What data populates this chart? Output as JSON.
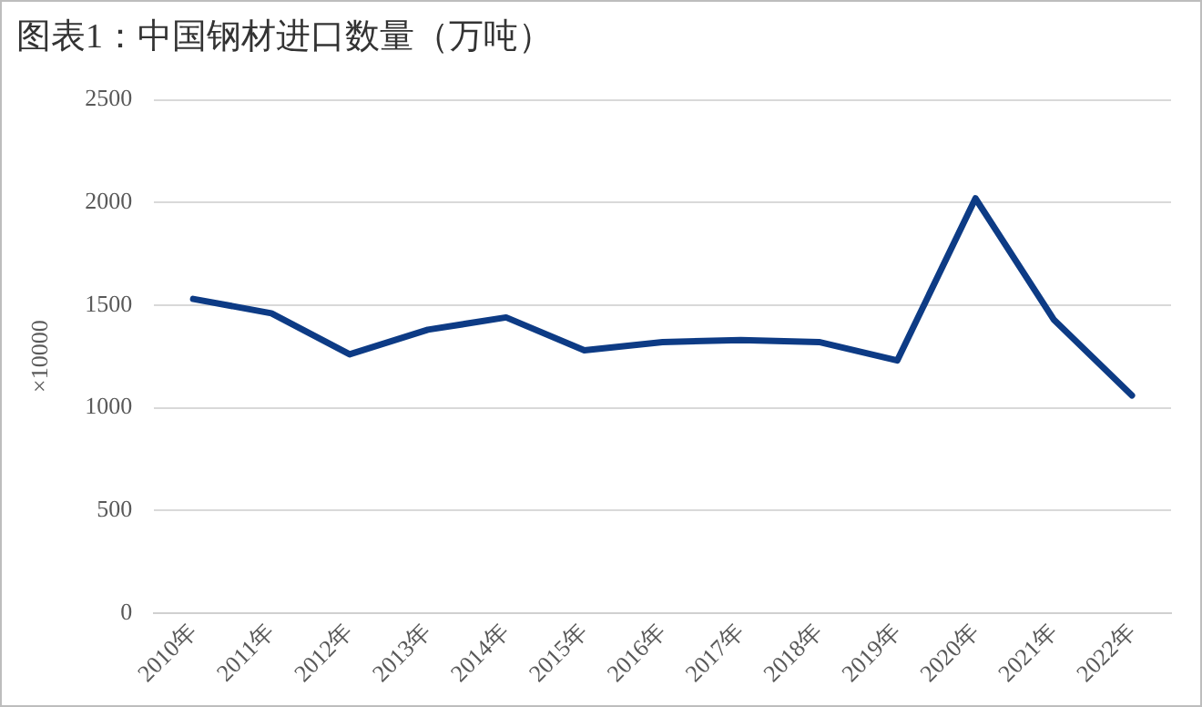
{
  "chart_data": {
    "type": "line",
    "title": "图表1：中国钢材进口数量（万吨）",
    "ylabel": "×10000",
    "categories": [
      "2010年",
      "2011年",
      "2012年",
      "2013年",
      "2014年",
      "2015年",
      "2016年",
      "2017年",
      "2018年",
      "2019年",
      "2020年",
      "2021年",
      "2022年"
    ],
    "series": [
      {
        "color": "#0d3b85",
        "values": [
          1530,
          1460,
          1260,
          1380,
          1440,
          1280,
          1320,
          1330,
          1320,
          1230,
          2020,
          1430,
          1060
        ]
      }
    ],
    "ylim": [
      0,
      2500
    ],
    "yticks": [
      0,
      500,
      1000,
      1500,
      2000,
      2500
    ],
    "grid": "y",
    "legend": false,
    "marker": "none",
    "line_style": "solid"
  }
}
